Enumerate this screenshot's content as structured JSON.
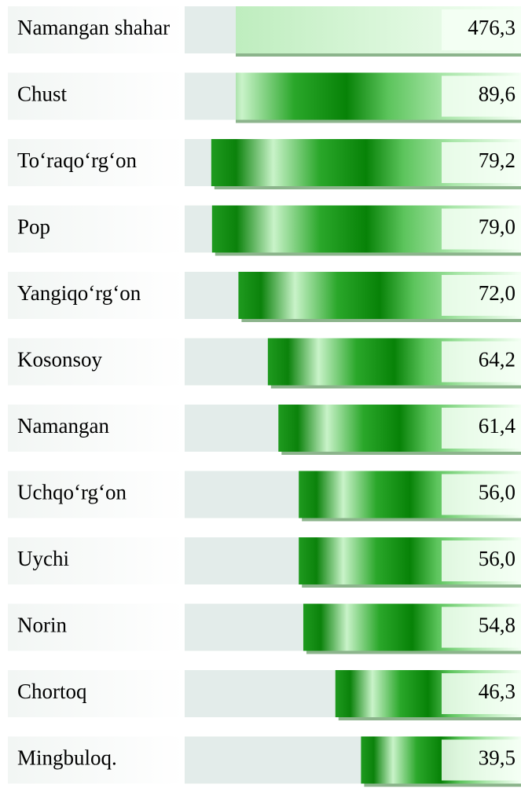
{
  "chart_data": {
    "type": "bar",
    "orientation": "horizontal",
    "categories": [
      "Namangan shahar",
      "Chust",
      "To‘raqo‘rg‘on",
      "Pop",
      "Yangiqo‘rg‘on",
      "Kosonsoy",
      "Namangan",
      "Uchqo‘rg‘on",
      "Uychi",
      "Norin",
      "Chortoq",
      "Mingbuloq."
    ],
    "values": [
      476.3,
      89.6,
      79.2,
      79.0,
      72.0,
      64.2,
      61.4,
      56.0,
      56.0,
      54.8,
      46.3,
      39.5
    ],
    "value_labels": [
      "476,3",
      "89,6",
      "79,2",
      "79,0",
      "72,0",
      "64,2",
      "61,4",
      "56,0",
      "56,0",
      "54,8",
      "46,3",
      "39,5"
    ],
    "color": "#0a8a0a"
  }
}
